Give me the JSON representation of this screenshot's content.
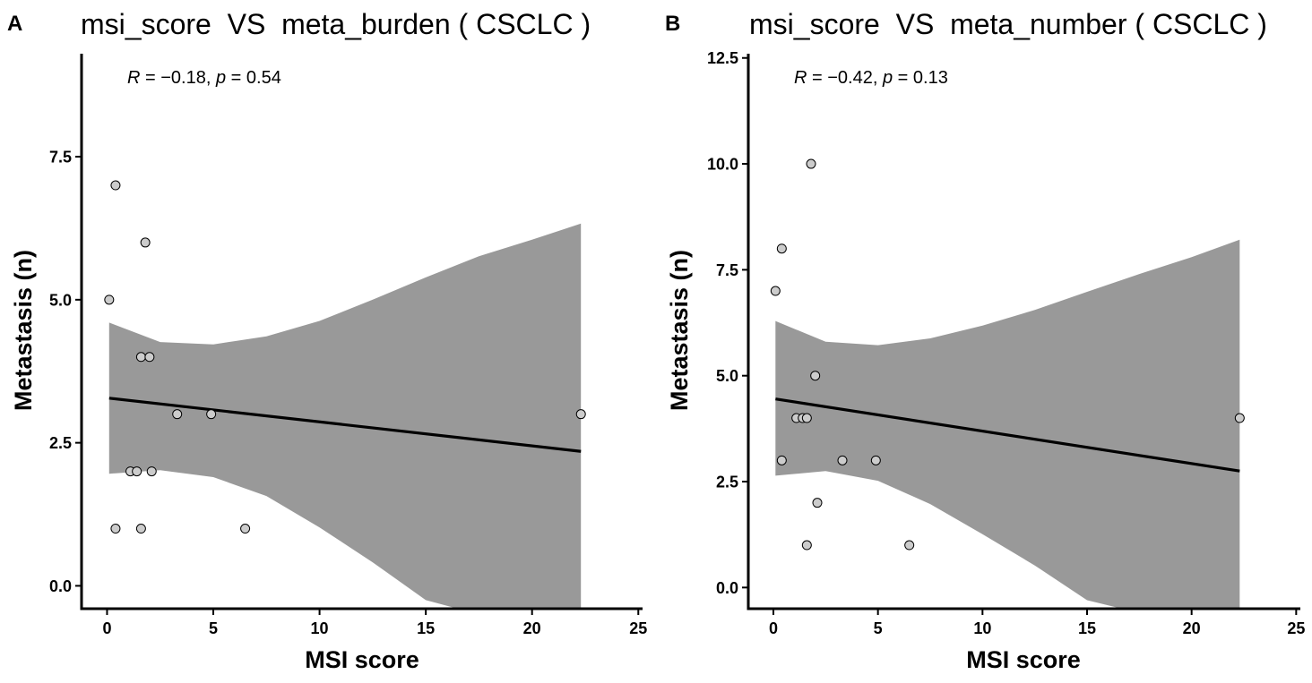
{
  "chart_data": [
    {
      "type": "scatter",
      "panel_label": "A",
      "title": "msi_score  VS  meta_burden ( CSCLC )",
      "stat_R": "−0.18",
      "stat_p": "0.54",
      "xlabel": "MSI score",
      "ylabel": "Metastasis (n)",
      "xlim": [
        -1.2,
        25.2
      ],
      "ylim": [
        -0.4,
        9.3
      ],
      "xticks": [
        0,
        5,
        10,
        15,
        20,
        25
      ],
      "xtick_labels": [
        "0",
        "5",
        "10",
        "15",
        "20",
        "25"
      ],
      "yticks": [
        0,
        2.5,
        5,
        7.5
      ],
      "ytick_labels": [
        "0.0",
        "2.5",
        "5.0",
        "7.5"
      ],
      "points": [
        {
          "x": 0.1,
          "y": 5
        },
        {
          "x": 0.4,
          "y": 7
        },
        {
          "x": 0.4,
          "y": 1
        },
        {
          "x": 1.1,
          "y": 2
        },
        {
          "x": 1.4,
          "y": 2
        },
        {
          "x": 1.6,
          "y": 4
        },
        {
          "x": 1.6,
          "y": 1
        },
        {
          "x": 1.8,
          "y": 6
        },
        {
          "x": 2.0,
          "y": 4
        },
        {
          "x": 2.1,
          "y": 2
        },
        {
          "x": 3.3,
          "y": 3
        },
        {
          "x": 4.9,
          "y": 3
        },
        {
          "x": 6.5,
          "y": 1
        },
        {
          "x": 22.3,
          "y": 3
        }
      ],
      "fit": {
        "x": [
          0.1,
          22.3
        ],
        "y": [
          3.28,
          2.35
        ]
      },
      "ci_band": {
        "x": [
          0.1,
          2.5,
          5,
          7.5,
          10,
          12.5,
          15,
          17.5,
          20,
          22.3
        ],
        "upper": [
          4.6,
          4.26,
          4.22,
          4.36,
          4.63,
          5.0,
          5.39,
          5.76,
          6.05,
          6.33
        ],
        "lower": [
          1.96,
          2.02,
          1.9,
          1.57,
          1.02,
          0.41,
          -0.25,
          -0.5,
          -0.5,
          -0.5
        ]
      },
      "colors": {
        "point_fill": "#cccccc",
        "point_stroke": "#000000",
        "band": "#999999",
        "line": "#000000"
      }
    },
    {
      "type": "scatter",
      "panel_label": "B",
      "title": "msi_score  VS  meta_number ( CSCLC )",
      "stat_R": "−0.42",
      "stat_p": "0.13",
      "xlabel": "MSI score",
      "ylabel": "Metastasis (n)",
      "xlim": [
        -1.2,
        25.2
      ],
      "ylim": [
        -0.5,
        12.6
      ],
      "xticks": [
        0,
        5,
        10,
        15,
        20,
        25
      ],
      "xtick_labels": [
        "0",
        "5",
        "10",
        "15",
        "20",
        "25"
      ],
      "yticks": [
        0,
        2.5,
        5,
        7.5,
        10,
        12.5
      ],
      "ytick_labels": [
        "0.0",
        "2.5",
        "5.0",
        "7.5",
        "10.0",
        "12.5"
      ],
      "points": [
        {
          "x": 0.1,
          "y": 7
        },
        {
          "x": 0.4,
          "y": 8
        },
        {
          "x": 0.4,
          "y": 3
        },
        {
          "x": 1.1,
          "y": 4
        },
        {
          "x": 1.4,
          "y": 4
        },
        {
          "x": 1.6,
          "y": 4
        },
        {
          "x": 1.6,
          "y": 1
        },
        {
          "x": 1.8,
          "y": 10
        },
        {
          "x": 2.0,
          "y": 5
        },
        {
          "x": 2.1,
          "y": 2
        },
        {
          "x": 3.3,
          "y": 3
        },
        {
          "x": 4.9,
          "y": 3
        },
        {
          "x": 6.5,
          "y": 1
        },
        {
          "x": 22.3,
          "y": 4
        }
      ],
      "fit": {
        "x": [
          0.1,
          22.3
        ],
        "y": [
          4.45,
          2.75
        ]
      },
      "ci_band": {
        "x": [
          0.1,
          2.5,
          5,
          7.5,
          10,
          12.5,
          15,
          17.5,
          20,
          22.3
        ],
        "upper": [
          6.29,
          5.8,
          5.72,
          5.88,
          6.18,
          6.55,
          6.98,
          7.4,
          7.8,
          8.21
        ],
        "lower": [
          2.64,
          2.75,
          2.52,
          1.97,
          1.26,
          0.52,
          -0.3,
          -0.6,
          -0.6,
          -0.6
        ]
      },
      "colors": {
        "point_fill": "#cccccc",
        "point_stroke": "#000000",
        "band": "#999999",
        "line": "#000000"
      }
    }
  ]
}
